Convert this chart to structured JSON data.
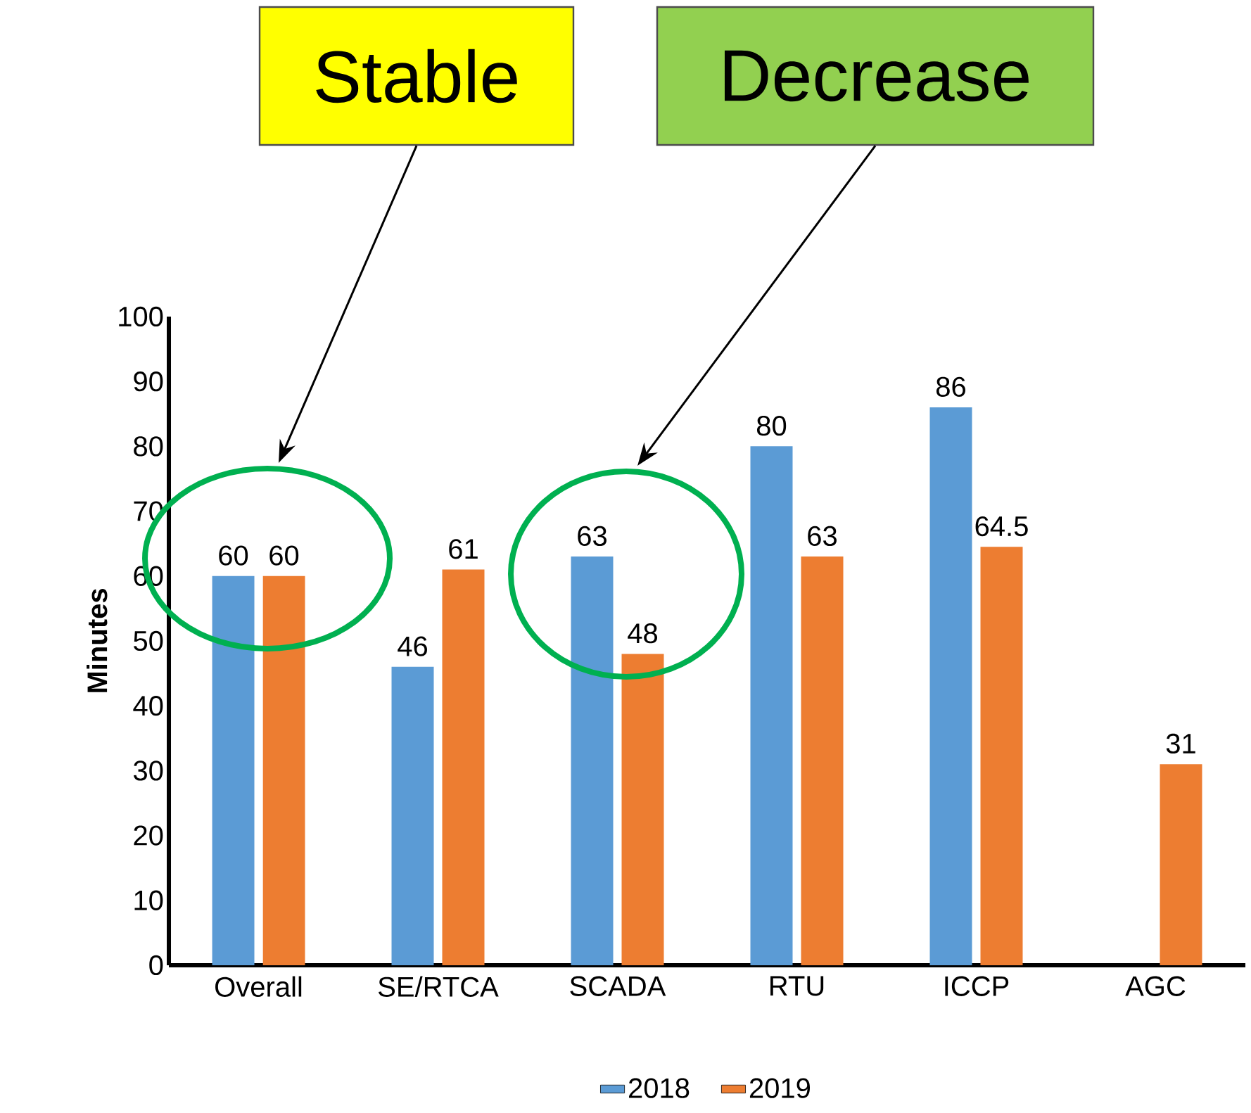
{
  "chart_data": {
    "type": "bar",
    "ylabel": "Minutes",
    "categories": [
      "Overall",
      "SE/RTCA",
      "SCADA",
      "RTU",
      "ICCP",
      "AGC"
    ],
    "series": [
      {
        "name": "2018",
        "color": "#5b9bd5",
        "values": [
          60,
          46,
          63,
          80,
          86,
          null
        ]
      },
      {
        "name": "2019",
        "color": "#ed7d31",
        "values": [
          60,
          61,
          48,
          63,
          64.5,
          31
        ]
      }
    ],
    "ylim": [
      0,
      100
    ],
    "yticks": [
      0,
      10,
      20,
      30,
      40,
      50,
      60,
      70,
      80,
      90,
      100
    ],
    "data_labels": true,
    "legend": "bottom",
    "annotations": [
      "Stable",
      "Decrease"
    ]
  }
}
